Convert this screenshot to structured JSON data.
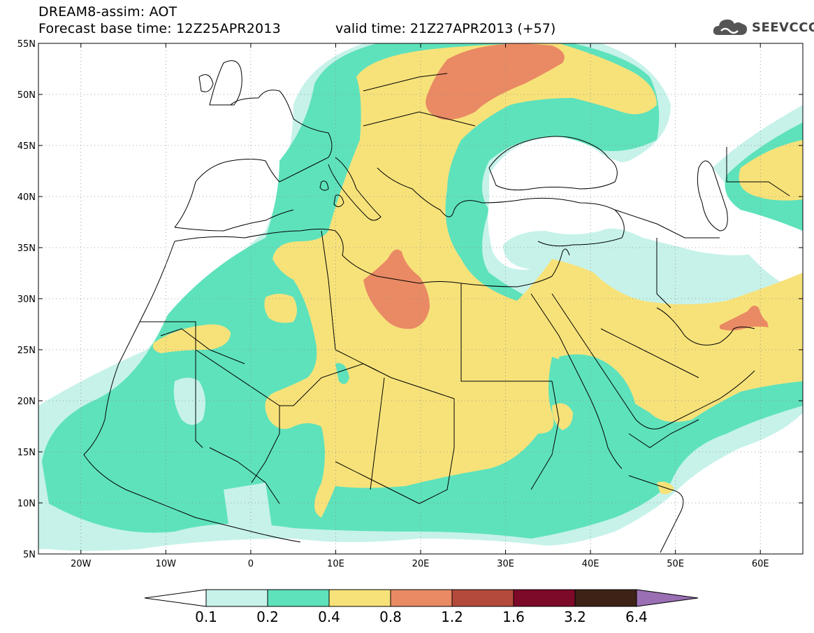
{
  "header": {
    "title": "DREAM8-assim: AOT",
    "base_time": "Forecast base time: 12Z25APR2013",
    "valid_time": "valid time: 21Z27APR2013 (+57)",
    "logo_text": "SEEVCCC",
    "logo_icon": "cloud-logo-icon"
  },
  "map": {
    "lat_labels": [
      "55N",
      "50N",
      "45N",
      "40N",
      "35N",
      "30N",
      "25N",
      "20N",
      "15N",
      "10N",
      "5N"
    ],
    "lon_labels": [
      "20W",
      "10W",
      "0",
      "10E",
      "20E",
      "30E",
      "40E",
      "50E",
      "60E"
    ],
    "lat_values": [
      55,
      50,
      45,
      40,
      35,
      30,
      25,
      20,
      15,
      10,
      5
    ],
    "lon_values": [
      -20,
      -10,
      0,
      10,
      20,
      30,
      40,
      50,
      60
    ],
    "extent": {
      "lon_min": -25,
      "lon_max": 65,
      "lat_min": 5,
      "lat_max": 55
    },
    "grid": "dotted"
  },
  "colorbar": {
    "labels": [
      "0.1",
      "0.2",
      "0.4",
      "0.8",
      "1.2",
      "1.6",
      "3.2",
      "6.4"
    ],
    "colors": [
      "#c6f2ea",
      "#5ee2bc",
      "#f7e27a",
      "#e98a64",
      "#b44a3c",
      "#7e0a2a",
      "#3e2216",
      "#9a6fb3"
    ],
    "under_color": "#ffffff",
    "over_color": "#9a6fb3"
  },
  "palette": {
    "lvl1": "#c6f2ea",
    "lvl2": "#5ee2bc",
    "lvl3": "#f7e27a",
    "lvl4": "#e98a64"
  }
}
